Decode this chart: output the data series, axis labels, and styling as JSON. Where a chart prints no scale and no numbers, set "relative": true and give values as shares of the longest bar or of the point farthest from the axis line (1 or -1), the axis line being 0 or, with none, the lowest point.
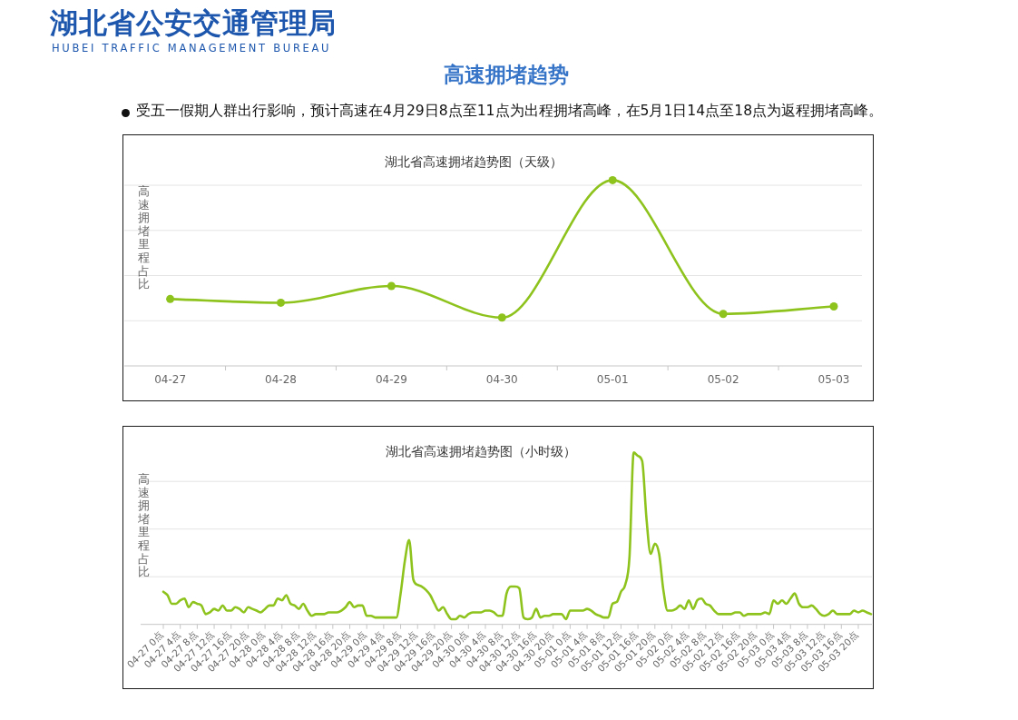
{
  "chart_data": [
    {
      "type": "other",
      "title": "高速拥堵趋势",
      "annotations": [
        "湖北省公安交通管理局",
        "HUBEI TRAFFIC MANAGEMENT BUREAU",
        "受五一假期人群出行影响，预计高速在4月29日8点至11点为出程拥堵高峰，在5月1日14点至18点为返程拥堵高峰。"
      ]
    },
    {
      "type": "line",
      "title": "湖北省高速拥堵趋势图（天级）",
      "ylabel": "高速拥堵里程占比",
      "relative": true,
      "grid": "y",
      "marker": "circle",
      "tick_labels": "x",
      "color": "#8ec31e",
      "categories": [
        "04-27",
        "04-28",
        "04-29",
        "04-30",
        "05-01",
        "05-02",
        "05-03"
      ],
      "values": [
        0.36,
        0.34,
        0.43,
        0.26,
        1,
        0.28,
        0.32
      ]
    },
    {
      "type": "line",
      "title": "湖北省高速拥堵趋势图（小时级）",
      "ylabel": "高速拥堵里程占比",
      "relative": true,
      "grid": "y",
      "tick_labels": "x",
      "color": "#8ec31e",
      "categories": [
        "04-27 0点",
        null,
        null,
        null,
        "04-27 4点",
        null,
        null,
        null,
        "04-27 8点",
        null,
        null,
        null,
        "04-27 12点",
        null,
        null,
        null,
        "04-27 16点",
        null,
        null,
        null,
        "04-27 20点",
        null,
        null,
        null,
        "04-28 0点",
        null,
        null,
        null,
        "04-28 4点",
        null,
        null,
        null,
        "04-28 8点",
        null,
        null,
        null,
        "04-28 12点",
        null,
        null,
        null,
        "04-28 16点",
        null,
        null,
        null,
        "04-28 20点",
        null,
        null,
        null,
        "04-29 0点",
        null,
        null,
        null,
        "04-29 4点",
        null,
        null,
        null,
        "04-29 8点",
        null,
        null,
        null,
        "04-29 12点",
        null,
        null,
        null,
        "04-29 16点",
        null,
        null,
        null,
        "04-29 20点",
        null,
        null,
        null,
        "04-30 0点",
        null,
        null,
        null,
        "04-30 4点",
        null,
        null,
        null,
        "04-30 8点",
        null,
        null,
        null,
        "04-30 12点",
        null,
        null,
        null,
        "04-30 16点",
        null,
        null,
        null,
        "04-30 20点",
        null,
        null,
        null,
        "05-01 0点",
        null,
        null,
        null,
        "05-01 4点",
        null,
        null,
        null,
        "05-01 8点",
        null,
        null,
        null,
        "05-01 12点",
        null,
        null,
        null,
        "05-01 16点",
        null,
        null,
        null,
        "05-01 20点",
        null,
        null,
        null,
        "05-02 0点",
        null,
        null,
        null,
        "05-02 4点",
        null,
        null,
        null,
        "05-02 8点",
        null,
        null,
        null,
        "05-02 12点",
        null,
        null,
        null,
        "05-02 16点",
        null,
        null,
        null,
        "05-02 20点",
        null,
        null,
        null,
        "05-03 0点",
        null,
        null,
        null,
        "05-03 4点",
        null,
        null,
        null,
        "05-03 8点",
        null,
        null,
        null,
        "05-03 12点",
        null,
        null,
        null,
        "05-03 16点",
        null,
        null,
        null,
        "05-03 20点",
        null,
        null,
        null
      ],
      "values": [
        0.19,
        0.17,
        0.12,
        0.12,
        0.14,
        0.15,
        0.1,
        0.13,
        0.12,
        0.11,
        0.06,
        0.07,
        0.09,
        0.08,
        0.11,
        0.08,
        0.08,
        0.1,
        0.09,
        0.07,
        0.1,
        0.09,
        0.08,
        0.07,
        0.09,
        0.11,
        0.11,
        0.15,
        0.14,
        0.17,
        0.12,
        0.11,
        0.09,
        0.12,
        0.08,
        0.05,
        0.06,
        0.06,
        0.06,
        0.07,
        0.07,
        0.07,
        0.08,
        0.1,
        0.13,
        0.1,
        0.11,
        0.11,
        0.05,
        0.05,
        0.04,
        0.04,
        0.04,
        0.04,
        0.04,
        0.04,
        0.18,
        0.37,
        0.49,
        0.26,
        0.23,
        0.22,
        0.2,
        0.17,
        0.12,
        0.08,
        0.1,
        0.06,
        0.03,
        0.03,
        0.05,
        0.04,
        0.06,
        0.07,
        0.07,
        0.07,
        0.08,
        0.08,
        0.07,
        0.05,
        0.05,
        0.18,
        0.22,
        0.22,
        0.21,
        0.04,
        0.03,
        0.04,
        0.09,
        0.04,
        0.05,
        0.05,
        0.06,
        0.06,
        0.06,
        0.03,
        0.08,
        0.08,
        0.08,
        0.08,
        0.09,
        0.08,
        0.06,
        0.05,
        0.04,
        0.04,
        0.12,
        0.13,
        0.19,
        0.23,
        0.39,
        1,
        0.98,
        0.95,
        0.62,
        0.41,
        0.47,
        0.41,
        0.2,
        0.08,
        0.08,
        0.09,
        0.11,
        0.09,
        0.14,
        0.09,
        0.14,
        0.15,
        0.12,
        0.11,
        0.08,
        0.06,
        0.06,
        0.06,
        0.06,
        0.07,
        0.07,
        0.05,
        0.06,
        0.06,
        0.06,
        0.06,
        0.07,
        0.06,
        0.14,
        0.12,
        0.14,
        0.12,
        0.15,
        0.18,
        0.12,
        0.1,
        0.1,
        0.11,
        0.09,
        0.06,
        0.05,
        0.06,
        0.08,
        0.06,
        0.06,
        0.06,
        0.06,
        0.08,
        0.07,
        0.08,
        0.07,
        0.06
      ]
    }
  ]
}
